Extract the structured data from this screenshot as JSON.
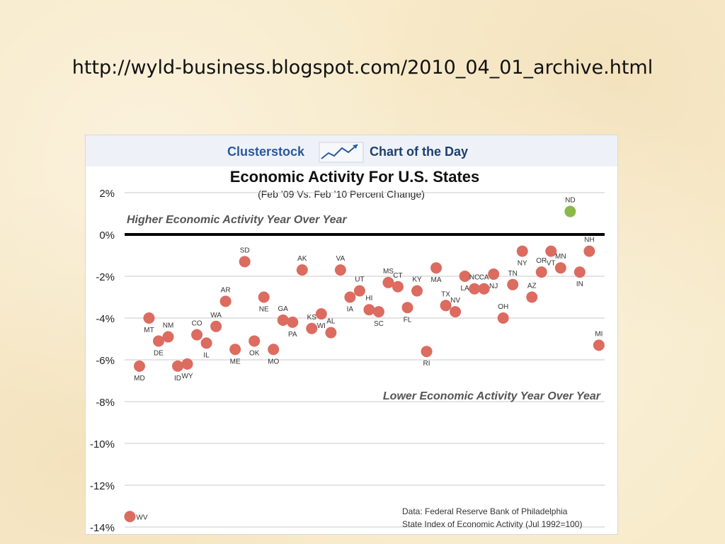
{
  "slide": {
    "url_text": "http://wyld-business.blogspot.com/2010_04_01_archive.html"
  },
  "banner": {
    "brand": "Clusterstock",
    "tag": "Chart of the Day",
    "logo_icon": "rising-chart-icon"
  },
  "colors": {
    "state_point": "#dc6b60",
    "positive_point": "#8bb948",
    "banner_bg": "#eef2f8",
    "brand_text": "#2a5a9a",
    "zero_line": "#000000",
    "grid": "#c8c8c8"
  },
  "chart_data": {
    "type": "scatter",
    "title": "Economic Activity For U.S. States",
    "subtitle": "(Feb ’09 Vs. Feb ’10 Percent Change)",
    "ylabel": "",
    "xlabel": "",
    "ylim": [
      -14,
      2
    ],
    "yticks": [
      2,
      0,
      -2,
      -4,
      -6,
      -8,
      -10,
      -12,
      -14
    ],
    "ytick_labels": [
      "2%",
      "0%",
      "-2%",
      "-4%",
      "-6%",
      "-8%",
      "-10%",
      "-12%",
      "-14%"
    ],
    "grid": true,
    "annotations": {
      "upper": "Higher Economic Activity Year Over Year",
      "lower": "Lower Economic Activity Year Over Year",
      "source_line1": "Data: Federal Reserve Bank of Philadelphia",
      "source_line2": "State Index of Economic Activity (Jul 1992=100)"
    },
    "points": [
      {
        "state": "WV",
        "x": 1,
        "y": -13.5
      },
      {
        "state": "MD",
        "x": 2,
        "y": -6.3
      },
      {
        "state": "MT",
        "x": 3,
        "y": -4.0
      },
      {
        "state": "DE",
        "x": 4,
        "y": -5.1
      },
      {
        "state": "NM",
        "x": 5,
        "y": -4.9
      },
      {
        "state": "ID",
        "x": 6,
        "y": -6.3
      },
      {
        "state": "WY",
        "x": 7,
        "y": -6.2
      },
      {
        "state": "CO",
        "x": 8,
        "y": -4.8
      },
      {
        "state": "IL",
        "x": 9,
        "y": -5.2
      },
      {
        "state": "WA",
        "x": 10,
        "y": -4.4
      },
      {
        "state": "AR",
        "x": 11,
        "y": -3.2
      },
      {
        "state": "ME",
        "x": 12,
        "y": -5.5
      },
      {
        "state": "SD",
        "x": 13,
        "y": -1.3
      },
      {
        "state": "OK",
        "x": 14,
        "y": -5.1
      },
      {
        "state": "NE",
        "x": 15,
        "y": -3.0
      },
      {
        "state": "MO",
        "x": 16,
        "y": -5.5
      },
      {
        "state": "GA",
        "x": 17,
        "y": -4.1
      },
      {
        "state": "PA",
        "x": 18,
        "y": -4.2
      },
      {
        "state": "AK",
        "x": 19,
        "y": -1.7
      },
      {
        "state": "KS",
        "x": 20,
        "y": -4.5
      },
      {
        "state": "WI",
        "x": 21,
        "y": -3.8
      },
      {
        "state": "AL",
        "x": 22,
        "y": -4.7
      },
      {
        "state": "VA",
        "x": 23,
        "y": -1.7
      },
      {
        "state": "IA",
        "x": 24,
        "y": -3.0
      },
      {
        "state": "UT",
        "x": 25,
        "y": -2.7
      },
      {
        "state": "HI",
        "x": 26,
        "y": -3.6
      },
      {
        "state": "SC",
        "x": 27,
        "y": -3.7
      },
      {
        "state": "MS",
        "x": 28,
        "y": -2.3
      },
      {
        "state": "CT",
        "x": 29,
        "y": -2.5
      },
      {
        "state": "FL",
        "x": 30,
        "y": -3.5
      },
      {
        "state": "KY",
        "x": 31,
        "y": -2.7
      },
      {
        "state": "RI",
        "x": 32,
        "y": -5.6
      },
      {
        "state": "MA",
        "x": 33,
        "y": -1.6
      },
      {
        "state": "TX",
        "x": 34,
        "y": -3.4
      },
      {
        "state": "NV",
        "x": 35,
        "y": -3.7
      },
      {
        "state": "LA",
        "x": 36,
        "y": -2.0
      },
      {
        "state": "NC",
        "x": 37,
        "y": -2.6
      },
      {
        "state": "CA",
        "x": 38,
        "y": -2.6
      },
      {
        "state": "NJ",
        "x": 39,
        "y": -1.9
      },
      {
        "state": "OH",
        "x": 40,
        "y": -4.0
      },
      {
        "state": "TN",
        "x": 41,
        "y": -2.4
      },
      {
        "state": "NY",
        "x": 42,
        "y": -0.8
      },
      {
        "state": "AZ",
        "x": 43,
        "y": -3.0
      },
      {
        "state": "OR",
        "x": 44,
        "y": -1.8
      },
      {
        "state": "VT",
        "x": 45,
        "y": -0.8
      },
      {
        "state": "MN",
        "x": 46,
        "y": -1.6
      },
      {
        "state": "ND",
        "x": 47,
        "y": 1.1
      },
      {
        "state": "IN",
        "x": 48,
        "y": -1.8
      },
      {
        "state": "NH",
        "x": 49,
        "y": -0.8
      },
      {
        "state": "MI",
        "x": 50,
        "y": -5.3
      }
    ]
  }
}
